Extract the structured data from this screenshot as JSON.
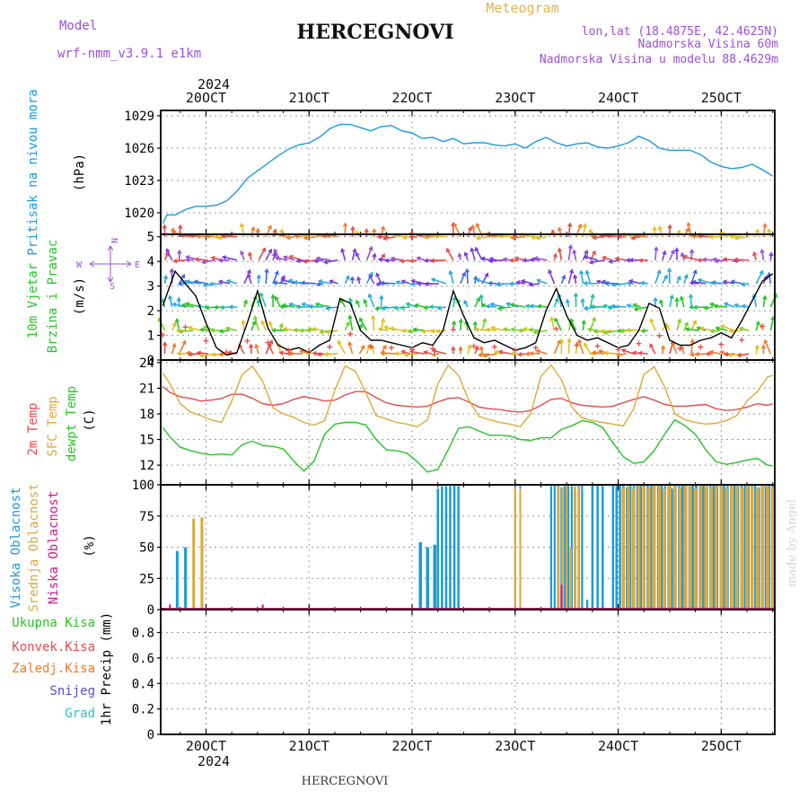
{
  "header": {
    "model_label": "Model",
    "model_name": "wrf-nmm_v3.9.1  e1km",
    "title": "HERCEGNOVI",
    "meteogram_label": "Meteogram",
    "lonlat": "lon,lat (18.4875E, 42.4625N)",
    "elevation": "Nadmorska Visina 60m",
    "model_elevation": "Nadmorska Visina u modelu 88.4629m",
    "year_top": "2024",
    "year_bottom": "2024",
    "footer_title": "HERCEGNOVI",
    "watermark": "made by Angel"
  },
  "colors": {
    "pressure": "#1a9ae0",
    "t2m": "#e84a4a",
    "sfc": "#e0a838",
    "dew": "#27c427",
    "high_cloud": "#1a9ae0",
    "mid_cloud": "#e0a838",
    "low_cloud": "#d01c8b",
    "precip_total": "#27c427",
    "precip_conv": "#e84a4a",
    "precip_frz": "#f07a2a",
    "snow": "#5a4ad8",
    "hail": "#2ac4c4",
    "purple_text": "#9b4fd8",
    "gold_text": "#e0b450"
  },
  "chart_data": [
    {
      "type": "line",
      "panel": "pressure",
      "ylabel_lines": [
        "Pritisak na nivou mora",
        "(hPa)"
      ],
      "ylim": [
        1018,
        1029.5
      ],
      "yticks": [
        1020,
        1023,
        1026,
        1029
      ],
      "x": [
        19.58,
        19.62,
        19.7,
        19.8,
        19.9,
        20.0,
        20.1,
        20.2,
        20.3,
        20.4,
        20.5,
        20.6,
        20.7,
        20.8,
        20.9,
        21.0,
        21.1,
        21.2,
        21.3,
        21.4,
        21.5,
        21.6,
        21.7,
        21.8,
        21.9,
        22.0,
        22.1,
        22.2,
        22.3,
        22.4,
        22.5,
        22.6,
        22.7,
        22.8,
        22.9,
        23.0,
        23.1,
        23.2,
        23.3,
        23.4,
        23.5,
        23.6,
        23.7,
        23.8,
        23.9,
        24.0,
        24.1,
        24.2,
        24.3,
        24.4,
        24.5,
        24.6,
        24.7,
        24.8,
        24.9,
        25.0,
        25.1,
        25.2,
        25.3,
        25.4,
        25.5
      ],
      "values": [
        1019.0,
        1019.8,
        1019.8,
        1020.3,
        1020.6,
        1020.6,
        1020.7,
        1021.1,
        1022.0,
        1023.2,
        1023.9,
        1024.6,
        1025.3,
        1025.9,
        1026.3,
        1026.5,
        1027.0,
        1027.8,
        1028.2,
        1028.2,
        1027.9,
        1027.6,
        1028.0,
        1028.1,
        1027.6,
        1027.4,
        1026.9,
        1027.0,
        1026.6,
        1026.9,
        1026.4,
        1026.5,
        1026.5,
        1026.3,
        1026.2,
        1026.4,
        1026.0,
        1026.6,
        1027.0,
        1026.5,
        1026.2,
        1026.4,
        1026.5,
        1026.1,
        1026.0,
        1026.2,
        1026.5,
        1027.1,
        1026.7,
        1026.0,
        1025.8,
        1025.8,
        1025.8,
        1025.4,
        1024.7,
        1024.3,
        1024.1,
        1024.2,
        1024.5,
        1024.0,
        1023.4
      ]
    },
    {
      "type": "line",
      "panel": "wind",
      "ylabel_lines": [
        "10m Vjetar",
        "Brzina i Pravac",
        "(m/s)"
      ],
      "compass": {
        "n": "N",
        "s": "S",
        "e": "E",
        "w": "W"
      },
      "ylim": [
        0,
        5.1
      ],
      "yticks": [
        0,
        1,
        2,
        3,
        4,
        5
      ],
      "x": [
        19.58,
        19.7,
        19.8,
        19.9,
        20.0,
        20.1,
        20.2,
        20.3,
        20.4,
        20.5,
        20.6,
        20.7,
        20.8,
        20.9,
        21.0,
        21.1,
        21.2,
        21.3,
        21.4,
        21.5,
        21.6,
        21.7,
        21.8,
        21.9,
        22.0,
        22.1,
        22.2,
        22.3,
        22.4,
        22.5,
        22.6,
        22.7,
        22.8,
        22.9,
        23.0,
        23.1,
        23.2,
        23.3,
        23.4,
        23.5,
        23.6,
        23.7,
        23.8,
        23.9,
        24.0,
        24.1,
        24.2,
        24.3,
        24.4,
        24.5,
        24.6,
        24.7,
        24.8,
        24.9,
        25.0,
        25.1,
        25.2,
        25.3,
        25.4,
        25.5
      ],
      "values": [
        2.2,
        3.6,
        3.1,
        2.6,
        1.5,
        0.5,
        0.2,
        0.3,
        1.5,
        2.8,
        1.3,
        0.6,
        0.4,
        0.5,
        0.3,
        0.6,
        0.8,
        2.5,
        2.3,
        1.2,
        0.8,
        0.8,
        0.7,
        0.6,
        0.5,
        0.7,
        0.6,
        1.2,
        2.8,
        1.8,
        0.9,
        0.7,
        0.8,
        0.6,
        0.4,
        0.5,
        0.7,
        2.0,
        2.9,
        1.8,
        1.0,
        0.8,
        0.9,
        0.7,
        0.5,
        0.6,
        1.2,
        2.3,
        2.1,
        0.8,
        0.6,
        0.6,
        0.8,
        0.9,
        1.1,
        0.9,
        1.6,
        2.4,
        3.2,
        3.5
      ]
    },
    {
      "type": "line",
      "panel": "temperature",
      "ylabel_lines": [
        "2m Temp",
        "SFC Temp",
        "dewpt Temp",
        "(C)"
      ],
      "ylim": [
        9.7,
        24.3
      ],
      "yticks": [
        12,
        15,
        18,
        21,
        24
      ],
      "x": [
        19.58,
        19.65,
        19.75,
        19.85,
        19.95,
        20.05,
        20.15,
        20.25,
        20.35,
        20.45,
        20.55,
        20.65,
        20.75,
        20.85,
        20.95,
        21.05,
        21.15,
        21.25,
        21.35,
        21.45,
        21.55,
        21.65,
        21.75,
        21.85,
        21.95,
        22.05,
        22.15,
        22.25,
        22.35,
        22.45,
        22.55,
        22.65,
        22.75,
        22.85,
        22.95,
        23.05,
        23.15,
        23.25,
        23.35,
        23.45,
        23.55,
        23.65,
        23.75,
        23.85,
        23.95,
        24.05,
        24.15,
        24.25,
        24.35,
        24.45,
        24.55,
        24.65,
        24.75,
        24.85,
        24.95,
        25.05,
        25.15,
        25.25,
        25.35,
        25.45,
        25.5
      ],
      "series": [
        {
          "key": "t2m",
          "values": [
            21.2,
            20.5,
            20.0,
            19.8,
            19.5,
            19.6,
            19.8,
            20.3,
            20.3,
            19.8,
            19.2,
            19.0,
            19.2,
            19.7,
            20.0,
            19.8,
            19.5,
            19.6,
            20.2,
            20.6,
            20.6,
            19.9,
            19.3,
            19.0,
            18.9,
            18.8,
            18.9,
            19.4,
            19.8,
            19.9,
            19.4,
            18.8,
            18.6,
            18.5,
            18.3,
            18.2,
            18.4,
            19.0,
            19.7,
            19.8,
            19.3,
            19.0,
            18.9,
            18.8,
            18.9,
            19.3,
            19.7,
            20.0,
            19.6,
            19.1,
            18.9,
            18.9,
            19.0,
            19.1,
            18.6,
            18.4,
            18.5,
            18.8,
            19.2,
            19.0,
            19.2
          ]
        },
        {
          "key": "sfc",
          "values": [
            22.8,
            21.5,
            19.2,
            18.2,
            17.8,
            17.3,
            17.0,
            19.5,
            22.6,
            23.6,
            21.8,
            18.7,
            18.0,
            17.6,
            17.0,
            16.7,
            17.2,
            20.8,
            23.6,
            23.0,
            20.5,
            17.8,
            17.4,
            17.0,
            16.8,
            16.5,
            17.3,
            21.5,
            23.7,
            22.5,
            19.6,
            17.7,
            17.3,
            17.0,
            16.8,
            16.5,
            18.0,
            22.4,
            23.7,
            22.0,
            18.8,
            17.5,
            17.2,
            17.0,
            16.8,
            16.6,
            18.6,
            22.6,
            23.5,
            21.2,
            18.0,
            17.3,
            17.0,
            16.8,
            16.9,
            17.2,
            17.8,
            19.5,
            20.6,
            22.3,
            22.5
          ]
        },
        {
          "key": "dew",
          "values": [
            16.4,
            15.3,
            14.1,
            13.7,
            13.4,
            13.2,
            13.3,
            13.2,
            14.4,
            14.8,
            14.3,
            14.2,
            13.9,
            12.5,
            11.3,
            12.5,
            15.6,
            16.8,
            17.0,
            17.0,
            16.7,
            15.0,
            13.8,
            13.7,
            13.4,
            12.4,
            11.2,
            11.5,
            13.8,
            16.3,
            16.5,
            16.0,
            15.5,
            15.5,
            15.4,
            15.0,
            14.9,
            15.2,
            15.2,
            16.2,
            16.6,
            17.2,
            17.0,
            16.4,
            14.6,
            13.0,
            12.2,
            12.4,
            13.7,
            15.6,
            17.3,
            16.6,
            15.6,
            13.8,
            12.4,
            12.1,
            12.3,
            12.6,
            12.8,
            12.0,
            11.9
          ]
        }
      ]
    },
    {
      "type": "bar",
      "panel": "cloud",
      "ylabel_lines": [
        "Visoka Oblacnost",
        "Srednja Oblacnost",
        "Niska Oblacnost",
        "(%)"
      ],
      "ylim": [
        0,
        100
      ],
      "yticks": [
        0,
        25,
        50,
        75,
        100
      ],
      "series": [
        {
          "key": "high_cloud",
          "segments": [
            {
              "start": 19.72,
              "end": 19.8,
              "values": [
                47,
                50
              ]
            },
            {
              "start": 22.08,
              "end": 22.22,
              "values": [
                54,
                50,
                52
              ]
            },
            {
              "start": 22.25,
              "end": 22.45,
              "values": [
                97,
                99,
                99,
                99,
                100,
                99
              ]
            },
            {
              "start": 23.0,
              "end": 23.05,
              "values": [
                100,
                99
              ]
            },
            {
              "start": 23.35,
              "end": 23.65,
              "values": [
                99,
                100,
                100,
                98,
                99,
                100,
                99,
                96,
                99,
                100
              ]
            },
            {
              "start": 23.7,
              "end": 23.73,
              "values": [
                8
              ]
            },
            {
              "start": 23.75,
              "end": 23.85,
              "values": [
                99,
                100,
                99
              ]
            },
            {
              "start": 23.95,
              "end": 25.5,
              "values": [
                100,
                99,
                100,
                100,
                98,
                100,
                99,
                100,
                100,
                99,
                100,
                100,
                99,
                100,
                100,
                99,
                100,
                97,
                100,
                99,
                100,
                100,
                99,
                100,
                100,
                98,
                100,
                99,
                100,
                100,
                99,
                100,
                100,
                99,
                100,
                100,
                99,
                100,
                100,
                99,
                100,
                100,
                98,
                100,
                99,
                100,
                100
              ]
            }
          ]
        },
        {
          "key": "mid_cloud",
          "segments": [
            {
              "start": 19.88,
              "end": 19.96,
              "values": [
                73,
                74
              ]
            },
            {
              "start": 23.0,
              "end": 23.05,
              "values": [
                98,
                97
              ]
            },
            {
              "start": 23.42,
              "end": 23.62,
              "values": [
                99,
                98,
                100,
                50,
                99,
                98
              ]
            },
            {
              "start": 24.05,
              "end": 25.5,
              "values": [
                98,
                99,
                97,
                100,
                99,
                98,
                100,
                99,
                97,
                100,
                99,
                98,
                100,
                99,
                97,
                100,
                99,
                98,
                100,
                99,
                97,
                100,
                99,
                98,
                100,
                99,
                97,
                100,
                99,
                98
              ]
            }
          ]
        },
        {
          "key": "low_cloud",
          "segments": [
            {
              "start": 19.65,
              "end": 19.68,
              "values": [
                4
              ]
            },
            {
              "start": 20.55,
              "end": 20.58,
              "values": [
                4
              ]
            },
            {
              "start": 23.45,
              "end": 23.48,
              "values": [
                20
              ]
            }
          ]
        }
      ]
    },
    {
      "type": "line",
      "panel": "precip",
      "ylabel_lines": [
        "1hr Precip (mm)"
      ],
      "legend": [
        "Ukupna Kisa",
        "Konvek.Kisa",
        "Zaledj.Kisa",
        "Snijeg",
        "Grad"
      ],
      "ylim": [
        0,
        0.98
      ],
      "yticks": [
        0,
        0.2,
        0.4,
        0.6,
        0.8
      ],
      "ytick_labels": [
        "0",
        "0.2",
        "0.4",
        "0.6",
        "0.8"
      ],
      "x": [
        19.58,
        25.5
      ],
      "values": [
        0,
        0
      ]
    }
  ],
  "xaxis": {
    "xlim": [
      19.56,
      25.52
    ],
    "ticks": [
      20,
      21,
      22,
      23,
      24,
      25
    ],
    "tick_labels": [
      "20OCT",
      "21OCT",
      "22OCT",
      "23OCT",
      "24OCT",
      "25OCT"
    ]
  }
}
